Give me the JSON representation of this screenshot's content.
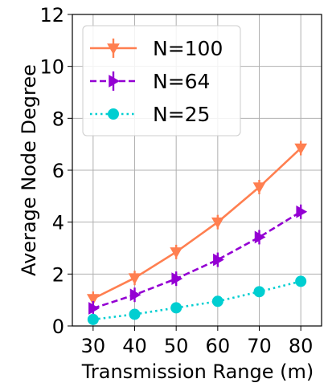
{
  "chart_data": {
    "type": "line",
    "title": "",
    "xlabel": "Transmission Range (m)",
    "ylabel": "Average Node Degree",
    "x": [
      30,
      40,
      50,
      60,
      70,
      80
    ],
    "xticks": [
      30,
      40,
      50,
      60,
      70,
      80
    ],
    "yticks": [
      0,
      2,
      4,
      6,
      8,
      10,
      12
    ],
    "xlim": [
      25,
      85
    ],
    "ylim": [
      0,
      12
    ],
    "grid": true,
    "legend_position": "top-left",
    "series": [
      {
        "name": "N=100",
        "values": [
          1.05,
          1.85,
          2.85,
          4.0,
          5.35,
          6.85
        ],
        "color": "#ff7f50",
        "linestyle": "solid",
        "marker": "triangle-down"
      },
      {
        "name": "N=64",
        "values": [
          0.68,
          1.2,
          1.82,
          2.55,
          3.42,
          4.4
        ],
        "color": "#9400d3",
        "linestyle": "dashed",
        "marker": "triangle-right"
      },
      {
        "name": "N=25",
        "values": [
          0.25,
          0.45,
          0.7,
          0.95,
          1.32,
          1.72
        ],
        "color": "#00ced1",
        "linestyle": "dotted",
        "marker": "circle"
      }
    ]
  }
}
